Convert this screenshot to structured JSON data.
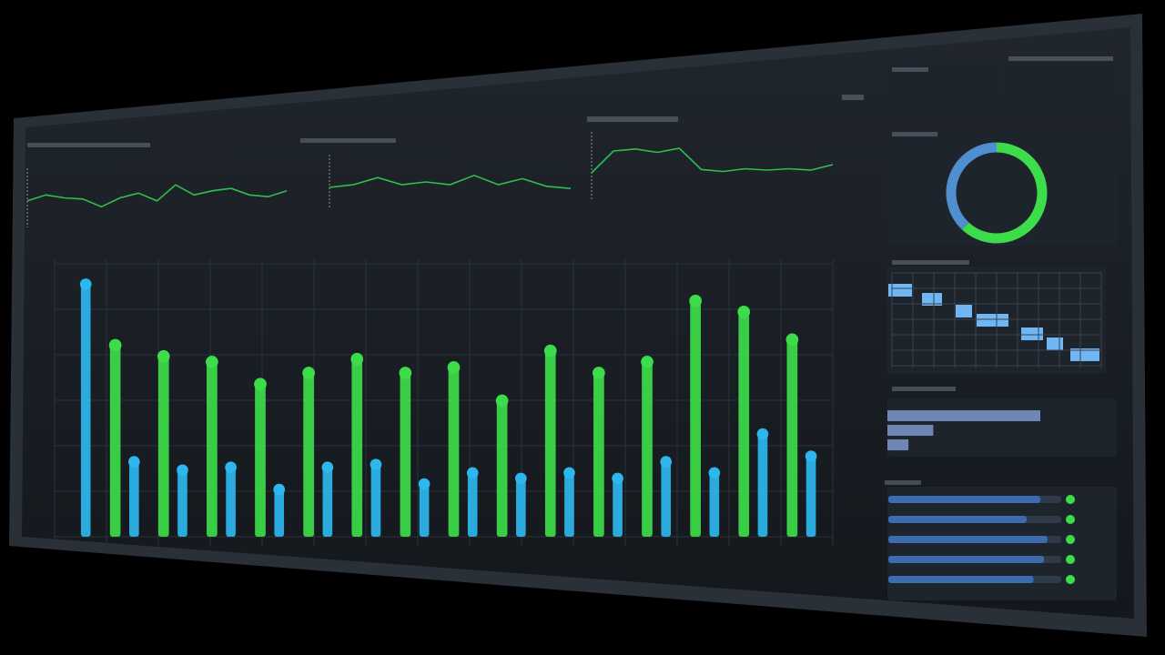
{
  "chart_data": [
    {
      "type": "line",
      "color": "#2fbf4f",
      "ylim": [
        0,
        100
      ],
      "values": [
        45,
        55,
        50,
        48,
        35,
        50,
        58,
        45,
        72,
        55,
        62,
        66,
        55,
        52,
        62
      ]
    },
    {
      "type": "line",
      "color": "#2fbf4f",
      "ylim": [
        0,
        100
      ],
      "values": [
        40,
        45,
        58,
        45,
        50,
        45,
        62,
        45,
        56,
        42,
        38
      ]
    },
    {
      "type": "line",
      "color": "#2fbf4f",
      "ylim": [
        0,
        100
      ],
      "values": [
        40,
        72,
        75,
        70,
        76,
        45,
        42,
        46,
        44,
        46,
        44,
        52
      ]
    },
    {
      "type": "bar",
      "ylim": [
        0,
        100
      ],
      "series": [
        {
          "color": "#3ddc4a",
          "values": [
            70,
            66,
            64,
            56,
            60,
            65,
            60,
            62,
            50,
            68,
            60,
            64,
            86,
            82,
            72
          ]
        },
        {
          "color": "#2eb6ef",
          "values": [
            92,
            28,
            25,
            26,
            18,
            26,
            27,
            20,
            24,
            22,
            24,
            22,
            28,
            24,
            38,
            30
          ]
        }
      ]
    },
    {
      "type": "pie",
      "colors": [
        "#3ddc4a",
        "#4f8fd0"
      ],
      "values": [
        62,
        38
      ]
    },
    {
      "type": "hbar",
      "color": "#6f86b6",
      "xlim": [
        0,
        100
      ],
      "values": [
        80,
        24,
        11
      ]
    },
    {
      "type": "progress",
      "color": "#3c6bb0",
      "xlim": [
        0,
        100
      ],
      "values": [
        88,
        80,
        92,
        90,
        84
      ]
    }
  ]
}
